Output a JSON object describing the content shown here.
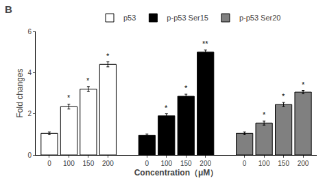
{
  "chart_data": {
    "type": "bar",
    "title": "B",
    "xlabel": "Concentration（μM）",
    "ylabel": "Fold changes",
    "categories": [
      "0",
      "100",
      "150",
      "200"
    ],
    "series": [
      {
        "name": "p53",
        "color": "white",
        "values": [
          1.05,
          2.35,
          3.2,
          4.4
        ],
        "errors": [
          0.07,
          0.12,
          0.12,
          0.12
        ],
        "annotations": [
          null,
          "*",
          "*",
          "*"
        ]
      },
      {
        "name": "p-p53 Ser15",
        "color": "black",
        "values": [
          0.95,
          1.9,
          2.85,
          5.0
        ],
        "errors": [
          0.07,
          0.1,
          0.1,
          0.1
        ],
        "annotations": [
          null,
          "*",
          "*",
          "**"
        ]
      },
      {
        "name": "p-p53 Ser20",
        "color": "#808080",
        "values": [
          1.05,
          1.55,
          2.45,
          3.05
        ],
        "errors": [
          0.07,
          0.1,
          0.1,
          0.08
        ],
        "annotations": [
          null,
          "*",
          "*",
          "*"
        ]
      }
    ],
    "ylim": [
      0,
      6
    ],
    "yticks": [
      0,
      2,
      4,
      6
    ],
    "grid": false,
    "legend": "upper center"
  }
}
